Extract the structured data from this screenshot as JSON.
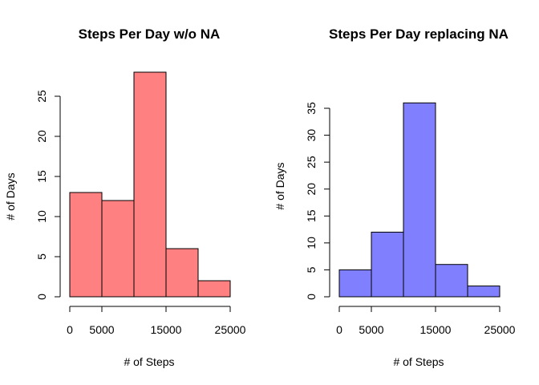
{
  "chart_data": [
    {
      "type": "bar",
      "title": "Steps Per Day w/o NA",
      "xlabel": "# of Steps",
      "ylabel": "# of Days",
      "bins": [
        [
          0,
          5000
        ],
        [
          5000,
          10000
        ],
        [
          10000,
          15000
        ],
        [
          15000,
          20000
        ],
        [
          20000,
          25000
        ]
      ],
      "values": [
        13,
        12,
        28,
        6,
        2
      ],
      "color": "#FF8080",
      "xlim": [
        0,
        25000
      ],
      "ylim": [
        0,
        28
      ],
      "xticks": [
        0,
        5000,
        15000,
        25000
      ],
      "xtick_labels": [
        "0",
        "5000",
        "15000",
        "25000"
      ],
      "yticks": [
        0,
        5,
        10,
        15,
        20,
        25
      ],
      "ytick_labels": [
        "0",
        "5",
        "10",
        "15",
        "20",
        "25"
      ],
      "grid": false
    },
    {
      "type": "bar",
      "title": "Steps Per Day replacing NA",
      "xlabel": "# of Steps",
      "ylabel": "# of Days",
      "bins": [
        [
          0,
          5000
        ],
        [
          5000,
          10000
        ],
        [
          10000,
          15000
        ],
        [
          15000,
          20000
        ],
        [
          20000,
          25000
        ]
      ],
      "values": [
        5,
        12,
        36,
        6,
        2
      ],
      "color": "#8080FF",
      "xlim": [
        0,
        25000
      ],
      "ylim": [
        0,
        36
      ],
      "xticks": [
        0,
        5000,
        15000,
        25000
      ],
      "xtick_labels": [
        "0",
        "5000",
        "15000",
        "25000"
      ],
      "yticks": [
        0,
        5,
        10,
        15,
        20,
        25,
        30,
        35
      ],
      "ytick_labels": [
        "0",
        "5",
        "10",
        "15",
        "20",
        "25",
        "30",
        "35"
      ],
      "grid": false
    }
  ]
}
